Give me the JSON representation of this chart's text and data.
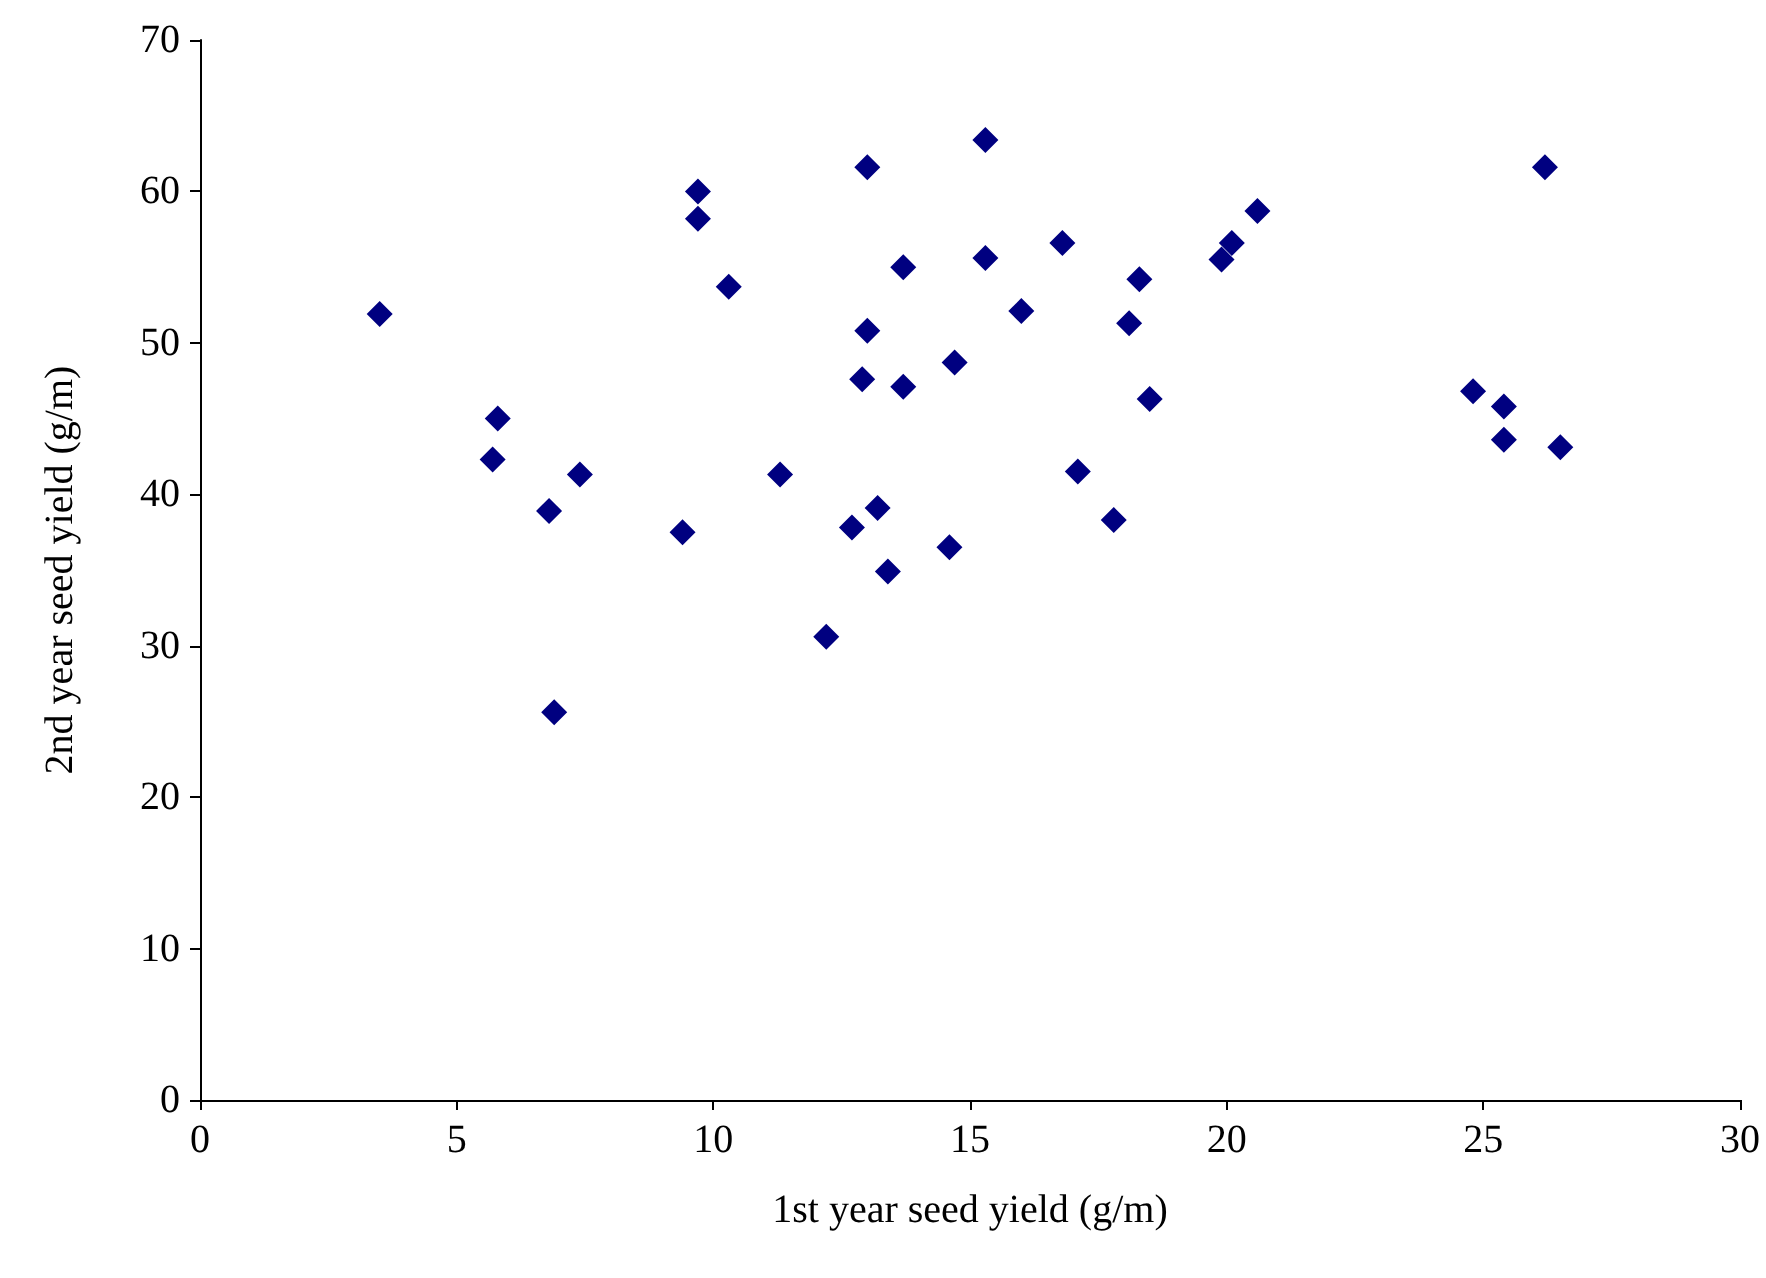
{
  "chart_data": {
    "type": "scatter",
    "xlabel": "1st year seed yield (g/m)",
    "ylabel": "2nd year seed yield (g/m)",
    "x": [
      3.5,
      5.7,
      5.8,
      6.8,
      6.9,
      7.4,
      9.4,
      9.7,
      9.7,
      10.3,
      11.3,
      12.2,
      12.7,
      12.9,
      13.0,
      13.0,
      13.2,
      13.4,
      13.7,
      13.7,
      14.6,
      14.7,
      15.3,
      15.3,
      16.0,
      16.8,
      17.1,
      17.8,
      18.1,
      18.3,
      18.5,
      19.9,
      20.1,
      20.6,
      24.8,
      25.4,
      25.4,
      26.2,
      26.5
    ],
    "values": [
      51.9,
      42.3,
      45.0,
      38.9,
      25.6,
      41.3,
      37.5,
      60.0,
      58.2,
      53.7,
      41.3,
      30.6,
      37.8,
      47.6,
      50.8,
      61.6,
      39.1,
      34.9,
      55.0,
      47.1,
      36.5,
      48.7,
      63.4,
      55.6,
      52.1,
      56.6,
      41.5,
      38.3,
      51.3,
      54.2,
      46.3,
      55.5,
      56.6,
      58.7,
      46.8,
      45.8,
      43.6,
      61.6,
      43.1
    ],
    "color": "#000080",
    "marker": "diamond",
    "xlim": [
      0,
      30
    ],
    "xticks": [
      0,
      5,
      10,
      15,
      20,
      25,
      30
    ],
    "ylim": [
      0,
      70
    ],
    "yticks": [
      0,
      10,
      20,
      30,
      40,
      50,
      60,
      70
    ]
  }
}
